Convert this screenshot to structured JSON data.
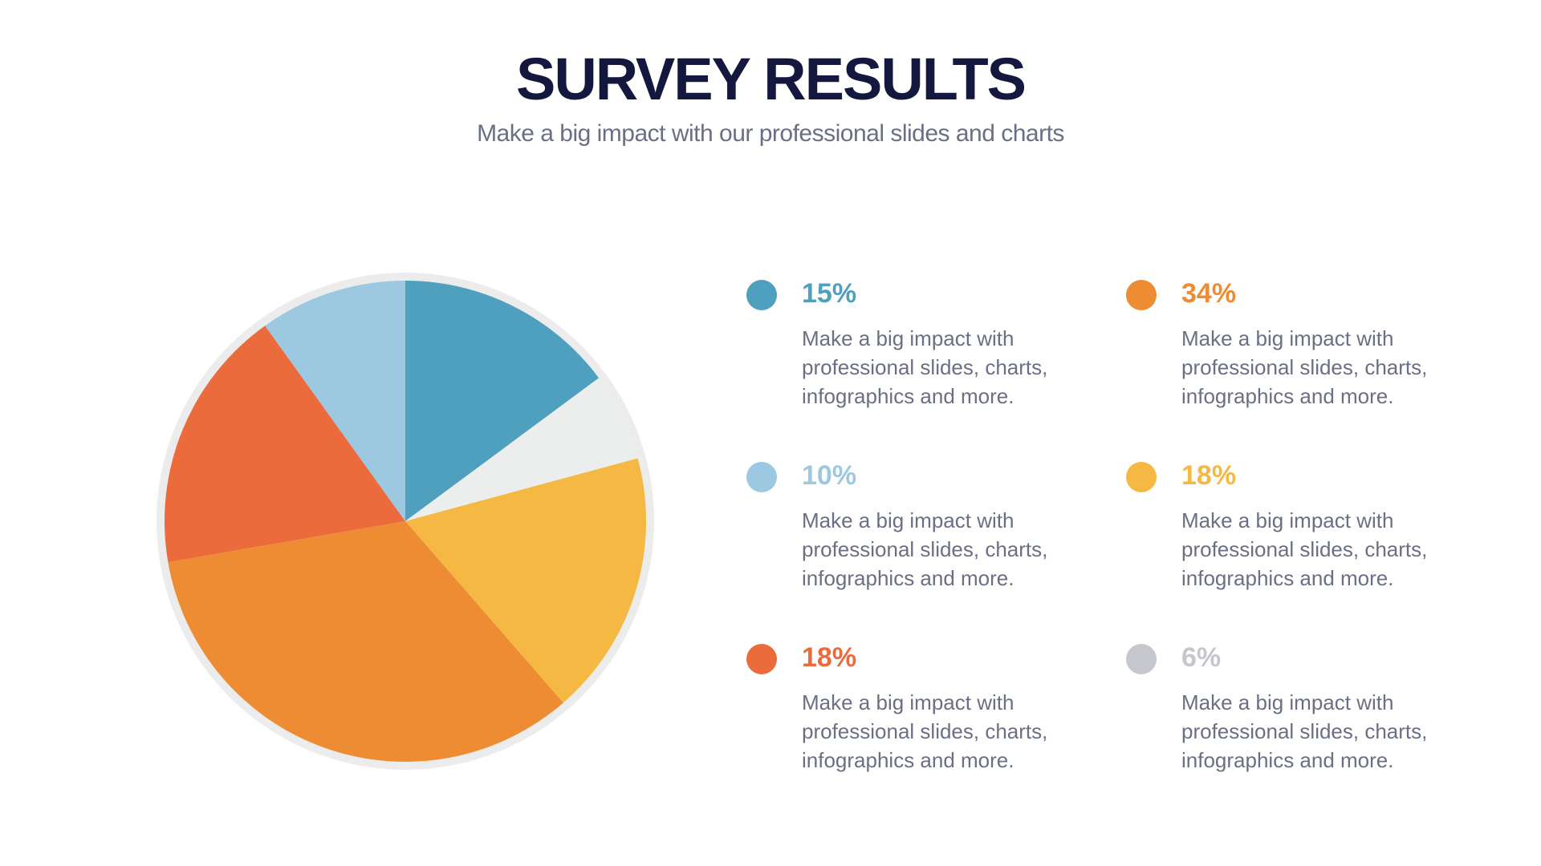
{
  "header": {
    "title": "SURVEY RESULTS",
    "subtitle": "Make a big impact with our professional slides and charts"
  },
  "chart_data": {
    "type": "pie",
    "title": "",
    "slices": [
      {
        "label": "15%",
        "value": 15,
        "color": "#4f9fbe"
      },
      {
        "label": "6%",
        "value": 6,
        "color": "#eceded"
      },
      {
        "label": "18%",
        "value": 18,
        "color": "#f4b843"
      },
      {
        "label": "34%",
        "value": 34,
        "color": "#ee8c33"
      },
      {
        "label": "18%",
        "value": 18,
        "color": "#ec6b3d"
      },
      {
        "label": "10%",
        "value": 10,
        "color": "#9dc8e1"
      }
    ]
  },
  "legend": [
    {
      "value": "15%",
      "color": "#4f9fbe",
      "text": "Make a big impact with professional slides, charts, infographics and more."
    },
    {
      "value": "34%",
      "color": "#ee8c33",
      "text": "Make a big impact with professional slides, charts, infographics and more."
    },
    {
      "value": "10%",
      "color": "#9dc8e1",
      "text": "Make a big impact with professional slides, charts, infographics and more."
    },
    {
      "value": "18%",
      "color": "#f4b843",
      "text": "Make a big impact with professional slides, charts, infographics and more."
    },
    {
      "value": "18%",
      "color": "#ec6b3d",
      "text": "Make a big impact with professional slides, charts, infographics and more."
    },
    {
      "value": "6%",
      "color": "#c5c7cc",
      "text": "Make a big impact with professional slides, charts, infographics and more."
    }
  ]
}
